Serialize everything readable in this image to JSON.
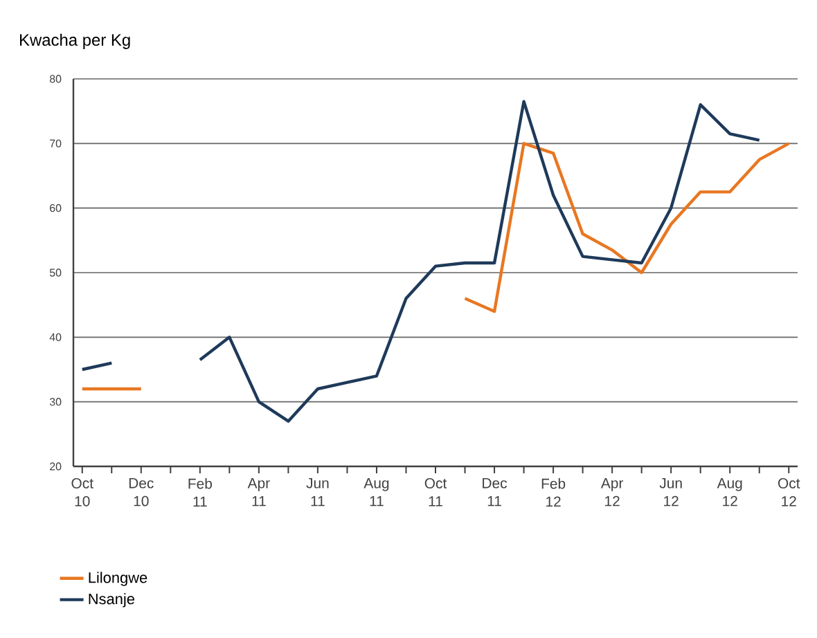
{
  "chart_data": {
    "type": "line",
    "ylabel": "Kwacha per Kg",
    "categories": [
      "Oct 10",
      null,
      "Dec 10",
      null,
      "Feb 11",
      null,
      "Apr 11",
      null,
      "Jun 11",
      null,
      "Aug 11",
      null,
      "Oct 11",
      null,
      "Dec 11",
      null,
      "Feb 12",
      null,
      "Apr 12",
      null,
      "Jun 12",
      null,
      "Aug 12",
      null,
      "Oct 12"
    ],
    "series": [
      {
        "name": "Lilongwe",
        "color": "#e87722",
        "values": [
          32,
          32,
          32,
          null,
          null,
          null,
          null,
          null,
          null,
          null,
          null,
          null,
          null,
          46,
          44,
          70,
          68.5,
          56,
          53.5,
          50,
          57.5,
          62.5,
          62.5,
          67.5,
          70
        ]
      },
      {
        "name": "Nsanje",
        "color": "#1f3a5a",
        "values": [
          35,
          36,
          null,
          null,
          36.5,
          40,
          30,
          27,
          32,
          33,
          34,
          46,
          51,
          51.5,
          51.5,
          76.5,
          62,
          52.5,
          52,
          51.5,
          60,
          76,
          71.5,
          70.5,
          null
        ]
      }
    ],
    "ylim": [
      20,
      80
    ],
    "yticks": [
      20,
      30,
      40,
      50,
      60,
      70,
      80
    ],
    "grid": "y",
    "legend": "bottom left"
  }
}
